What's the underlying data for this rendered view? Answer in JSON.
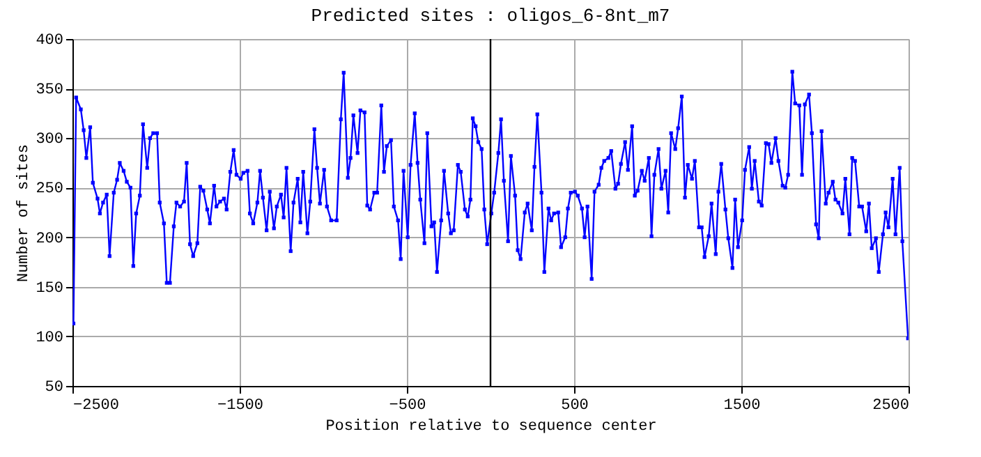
{
  "chart_data": {
    "type": "line",
    "title": "Predicted sites : oligos_6-8nt_m7",
    "xlabel": "Position relative to sequence center",
    "ylabel": "Number of sites",
    "xlim": [
      -2500,
      2500
    ],
    "ylim": [
      50,
      400
    ],
    "xticks": [
      -2500,
      -1500,
      -500,
      500,
      1500,
      2500
    ],
    "yticks": [
      50,
      100,
      150,
      200,
      250,
      300,
      350,
      400
    ],
    "grid": true,
    "marker": "square",
    "line_style": "solid",
    "ref_lines": [
      {
        "axis": "x",
        "value": 0,
        "label": null,
        "color": "#000000"
      }
    ],
    "series": [
      {
        "color": "#0000ff",
        "x": [
          -2494,
          -2478,
          -2450,
          -2433,
          -2417,
          -2394,
          -2378,
          -2350,
          -2336,
          -2317,
          -2295,
          -2278,
          -2253,
          -2233,
          -2217,
          -2194,
          -2175,
          -2153,
          -2136,
          -2119,
          -2097,
          -2078,
          -2053,
          -2036,
          -2017,
          -1994,
          -1978,
          -1953,
          -1936,
          -1917,
          -1894,
          -1878,
          -1856,
          -1833,
          -1817,
          -1797,
          -1778,
          -1753,
          -1736,
          -1717,
          -1694,
          -1678,
          -1653,
          -1639,
          -1617,
          -1594,
          -1578,
          -1556,
          -1536,
          -1519,
          -1494,
          -1478,
          -1453,
          -1439,
          -1419,
          -1394,
          -1378,
          -1361,
          -1339,
          -1320,
          -1295,
          -1278,
          -1253,
          -1237,
          -1220,
          -1195,
          -1178,
          -1153,
          -1137,
          -1120,
          -1095,
          -1078,
          -1053,
          -1037,
          -1020,
          -995,
          -978,
          -953,
          -920,
          -895,
          -878,
          -853,
          -837,
          -820,
          -795,
          -778,
          -753,
          -737,
          -720,
          -695,
          -678,
          -653,
          -637,
          -620,
          -595,
          -578,
          -553,
          -537,
          -520,
          -495,
          -478,
          -453,
          -436,
          -420,
          -395,
          -378,
          -353,
          -337,
          -320,
          -295,
          -278,
          -253,
          -237,
          -220,
          -195,
          -178,
          -153,
          -136,
          -120,
          -106,
          -89,
          -73,
          -53,
          -37,
          -20,
          5,
          22,
          47,
          63,
          80,
          105,
          122,
          147,
          163,
          180,
          205,
          222,
          247,
          263,
          280,
          305,
          322,
          347,
          363,
          380,
          405,
          422,
          447,
          463,
          480,
          505,
          522,
          547,
          563,
          580,
          605,
          622,
          647,
          663,
          680,
          705,
          722,
          747,
          763,
          780,
          805,
          822,
          847,
          863,
          880,
          905,
          922,
          947,
          963,
          980,
          1005,
          1022,
          1047,
          1063,
          1080,
          1105,
          1122,
          1144,
          1163,
          1180,
          1205,
          1222,
          1247,
          1263,
          1280,
          1305,
          1322,
          1347,
          1363,
          1380,
          1405,
          1422,
          1447,
          1463,
          1480,
          1505,
          1522,
          1547,
          1563,
          1580,
          1605,
          1622,
          1647,
          1663,
          1680,
          1705,
          1722,
          1747,
          1763,
          1780,
          1805,
          1822,
          1847,
          1863,
          1880,
          1905,
          1922,
          1947,
          1963,
          1980,
          2005,
          2022,
          2047,
          2063,
          2080,
          2105,
          2122,
          2147,
          2163,
          2180,
          2205,
          2222,
          2247,
          2263,
          2280,
          2305,
          2322,
          2347,
          2363,
          2380,
          2405,
          2422,
          2447,
          2463,
          2497
        ],
        "values": [
          113,
          341,
          329,
          308,
          280,
          311,
          255,
          239,
          224,
          235,
          243,
          181,
          245,
          258,
          275,
          267,
          256,
          250,
          171,
          224,
          242,
          314,
          270,
          300,
          305,
          305,
          235,
          214,
          154,
          154,
          211,
          235,
          231,
          236,
          275,
          193,
          181,
          194,
          251,
          247,
          228,
          214,
          252,
          231,
          236,
          239,
          228,
          266,
          288,
          263,
          259,
          265,
          267,
          224,
          214,
          235,
          267,
          240,
          207,
          246,
          209,
          231,
          243,
          220,
          270,
          186,
          235,
          259,
          215,
          266,
          204,
          236,
          309,
          270,
          234,
          268,
          231,
          217,
          217,
          319,
          366,
          260,
          280,
          323,
          285,
          328,
          326,
          232,
          228,
          245,
          245,
          333,
          266,
          292,
          298,
          231,
          217,
          178,
          267,
          200,
          273,
          325,
          275,
          238,
          194,
          305,
          211,
          215,
          165,
          217,
          267,
          224,
          204,
          207,
          273,
          266,
          228,
          221,
          238,
          320,
          312,
          296,
          289,
          228,
          193,
          224,
          245,
          285,
          319,
          257,
          196,
          282,
          242,
          187,
          178,
          225,
          234,
          207,
          271,
          324,
          245,
          165,
          229,
          217,
          224,
          225,
          190,
          200,
          229,
          245,
          246,
          242,
          229,
          200,
          231,
          158,
          246,
          253,
          270,
          277,
          280,
          287,
          249,
          254,
          274,
          296,
          268,
          312,
          242,
          247,
          267,
          257,
          280,
          201,
          263,
          289,
          249,
          267,
          225,
          305,
          289,
          310,
          342,
          240,
          273,
          259,
          277,
          210,
          210,
          180,
          201,
          234,
          183,
          246,
          274,
          228,
          199,
          169,
          238,
          190,
          217,
          268,
          291,
          249,
          277,
          236,
          232,
          295,
          294,
          275,
          300,
          277,
          252,
          250,
          263,
          367,
          335,
          333,
          263,
          334,
          344,
          305,
          213,
          199,
          307,
          234,
          245,
          256,
          238,
          235,
          224,
          259,
          203,
          280,
          277,
          231,
          231,
          206,
          234,
          189,
          199,
          165,
          203,
          225,
          210,
          259,
          203,
          270,
          196,
          98
        ]
      }
    ]
  }
}
